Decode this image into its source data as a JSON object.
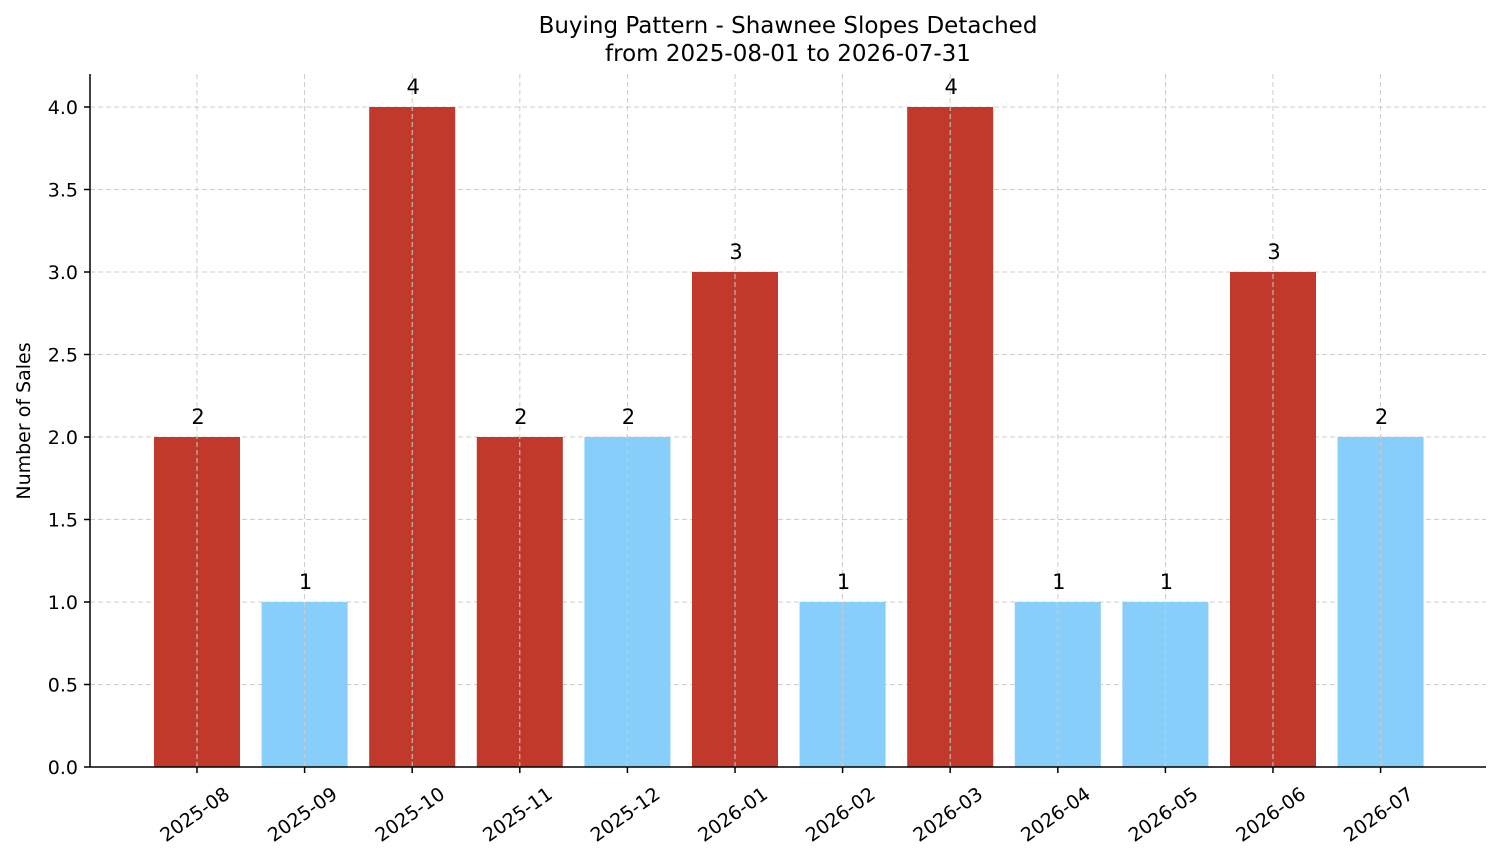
{
  "chart_data": {
    "type": "bar",
    "title": "Buying Pattern - Shawnee Slopes Detached",
    "subtitle": "from 2025-08-01 to 2026-07-31",
    "xlabel": "",
    "ylabel": "Number of Sales",
    "categories": [
      "2025-08",
      "2025-09",
      "2025-10",
      "2025-11",
      "2025-12",
      "2026-01",
      "2026-02",
      "2026-03",
      "2026-04",
      "2026-05",
      "2026-06",
      "2026-07"
    ],
    "values": [
      2,
      1,
      4,
      2,
      2,
      3,
      1,
      4,
      1,
      1,
      3,
      2
    ],
    "data_labels": [
      "2",
      "1",
      "4",
      "2",
      "2",
      "3",
      "1",
      "4",
      "1",
      "1",
      "3",
      "2"
    ],
    "bar_colors": [
      "#c0392b",
      "#87cefa",
      "#c0392b",
      "#c0392b",
      "#87cefa",
      "#c0392b",
      "#87cefa",
      "#c0392b",
      "#87cefa",
      "#87cefa",
      "#c0392b",
      "#87cefa"
    ],
    "ylim": [
      0,
      4.2
    ],
    "yticks": [
      0.0,
      0.5,
      1.0,
      1.5,
      2.0,
      2.5,
      3.0,
      3.5,
      4.0
    ],
    "ytick_labels": [
      "0.0",
      "0.5",
      "1.0",
      "1.5",
      "2.0",
      "2.5",
      "3.0",
      "3.5",
      "4.0"
    ],
    "grid": true,
    "legend": "none"
  }
}
